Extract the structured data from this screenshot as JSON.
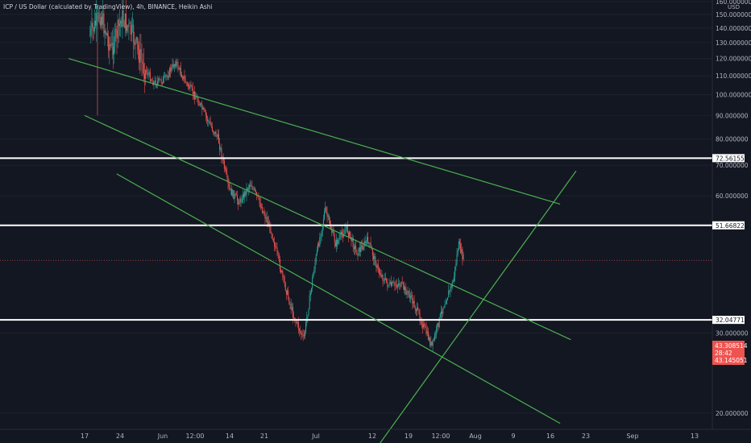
{
  "chart_data": {
    "type": "candlestick",
    "title": "ICP / US Dollar (calculated by TradingView), 4h, BINANCE, Heikin Ashi",
    "currency_unit": "USD",
    "y_scale": "log",
    "ylim": [
      17.0,
      160.0
    ],
    "y_ticks": [
      "160.000000",
      "150.000000",
      "140.000000",
      "130.000000",
      "120.000000",
      "110.000000",
      "100.000000",
      "90.000000",
      "80.000000",
      "70.000000",
      "60.000000",
      "30.000000",
      "20.000000"
    ],
    "x_ticks": [
      "17",
      "24",
      "Jun",
      "12:00",
      "14",
      "21",
      "Jul",
      "12",
      "19",
      "12:00",
      "Aug",
      "9",
      "16",
      "23",
      "Sep",
      "13"
    ],
    "colors": {
      "background": "#131722",
      "up": "#26a69a",
      "down": "#ef5350",
      "trendline": "#4caf50",
      "level": "#ffffff",
      "axis_text": "#b2b5be",
      "current_price_bg": "#ef5350"
    },
    "horizontal_levels": [
      {
        "label": "72.561552",
        "value": 72.561552
      },
      {
        "label": "51.668228",
        "value": 51.668228
      },
      {
        "label": "32.047716",
        "value": 32.047716
      }
    ],
    "current_price": {
      "price": "43.308514",
      "countdown": "28:42",
      "secondary": "43.145051"
    },
    "trendlines": [
      {
        "name": "channel-upper",
        "from": {
          "date": "2021-05-14",
          "price": 120.0
        },
        "to": {
          "date": "2021-08-14",
          "price": 57.5
        }
      },
      {
        "name": "channel-middle",
        "from": {
          "date": "2021-05-17",
          "price": 90.0
        },
        "to": {
          "date": "2021-08-16",
          "price": 29.0
        }
      },
      {
        "name": "channel-lower",
        "from": {
          "date": "2021-05-23",
          "price": 67.0
        },
        "to": {
          "date": "2021-08-14",
          "price": 19.0
        }
      },
      {
        "name": "support-rising",
        "from": {
          "date": "2021-07-11",
          "price": 17.0
        },
        "to": {
          "date": "2021-08-17",
          "price": 68.0
        }
      }
    ],
    "series": [
      {
        "name": "ICP/USD",
        "points": [
          {
            "date": "2021-05-18",
            "price": 135.0
          },
          {
            "date": "2021-05-20",
            "price": 150.0
          },
          {
            "date": "2021-05-22",
            "price": 125.0
          },
          {
            "date": "2021-05-24",
            "price": 148.0
          },
          {
            "date": "2021-05-26",
            "price": 135.0
          },
          {
            "date": "2021-05-28",
            "price": 115.0
          },
          {
            "date": "2021-05-30",
            "price": 106.0
          },
          {
            "date": "2021-06-01",
            "price": 108.0
          },
          {
            "date": "2021-06-03",
            "price": 118.0
          },
          {
            "date": "2021-06-05",
            "price": 106.0
          },
          {
            "date": "2021-06-07",
            "price": 98.0
          },
          {
            "date": "2021-06-09",
            "price": 88.0
          },
          {
            "date": "2021-06-11",
            "price": 80.0
          },
          {
            "date": "2021-06-13",
            "price": 62.0
          },
          {
            "date": "2021-06-15",
            "price": 58.0
          },
          {
            "date": "2021-06-17",
            "price": 64.0
          },
          {
            "date": "2021-06-19",
            "price": 57.0
          },
          {
            "date": "2021-06-21",
            "price": 50.0
          },
          {
            "date": "2021-06-23",
            "price": 40.0
          },
          {
            "date": "2021-06-25",
            "price": 33.0
          },
          {
            "date": "2021-06-27",
            "price": 29.0
          },
          {
            "date": "2021-06-29",
            "price": 42.0
          },
          {
            "date": "2021-07-01",
            "price": 56.0
          },
          {
            "date": "2021-07-03",
            "price": 47.0
          },
          {
            "date": "2021-07-05",
            "price": 51.0
          },
          {
            "date": "2021-07-07",
            "price": 45.0
          },
          {
            "date": "2021-07-09",
            "price": 48.0
          },
          {
            "date": "2021-07-11",
            "price": 41.0
          },
          {
            "date": "2021-07-13",
            "price": 38.0
          },
          {
            "date": "2021-07-15",
            "price": 38.5
          },
          {
            "date": "2021-07-17",
            "price": 36.0
          },
          {
            "date": "2021-07-19",
            "price": 32.0
          },
          {
            "date": "2021-07-21",
            "price": 28.0
          },
          {
            "date": "2021-07-23",
            "price": 34.0
          },
          {
            "date": "2021-07-25",
            "price": 39.0
          },
          {
            "date": "2021-07-26",
            "price": 47.0
          },
          {
            "date": "2021-07-27",
            "price": 43.3
          }
        ]
      }
    ]
  }
}
